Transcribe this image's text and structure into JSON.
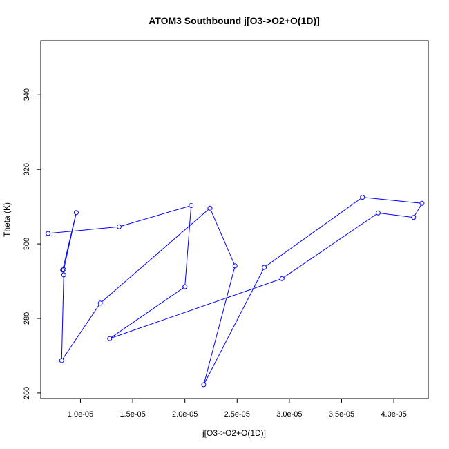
{
  "chart_data": {
    "type": "line",
    "title": "ATOM3 Southbound j[O3->O2+O(1D)]",
    "xlabel": "j[O3->O2+O(1D)]",
    "ylabel": "Theta (K)",
    "xlim": [
      6.2e-06,
      4.33e-05
    ],
    "ylim": [
      258.5,
      354.5
    ],
    "x_ticks": [
      {
        "value": 1e-05,
        "label": "1.0e-05"
      },
      {
        "value": 1.5e-05,
        "label": "1.5e-05"
      },
      {
        "value": 2e-05,
        "label": "2.0e-05"
      },
      {
        "value": 2.5e-05,
        "label": "2.5e-05"
      },
      {
        "value": 3e-05,
        "label": "3.0e-05"
      },
      {
        "value": 3.5e-05,
        "label": "3.5e-05"
      },
      {
        "value": 4e-05,
        "label": "4.0e-05"
      }
    ],
    "y_ticks": [
      {
        "value": 260,
        "label": "260"
      },
      {
        "value": 280,
        "label": "280"
      },
      {
        "value": 300,
        "label": "300"
      },
      {
        "value": 320,
        "label": "320"
      },
      {
        "value": 340,
        "label": "340"
      }
    ],
    "line_color": "#0000ff",
    "marker": "open-circle",
    "grid": false,
    "series": [
      {
        "x": [
          6.9e-06,
          1.37e-05,
          2.06e-05,
          2e-05,
          1.28e-05,
          2.93e-05,
          3.85e-05,
          4.19e-05,
          4.27e-05,
          3.7e-05,
          2.76e-05,
          2.18e-05,
          2.48e-05,
          2.24e-05,
          1.19e-05,
          8.2e-06,
          8.4e-06,
          8.4e-06,
          9.6e-06,
          8.3e-06
        ],
        "y": [
          302.8,
          304.6,
          310.3,
          288.5,
          274.6,
          290.7,
          308.3,
          307.1,
          310.9,
          312.5,
          293.7,
          262.2,
          294.1,
          309.6,
          284.1,
          268.7,
          291.7,
          293.1,
          308.4,
          293.0
        ]
      }
    ]
  }
}
